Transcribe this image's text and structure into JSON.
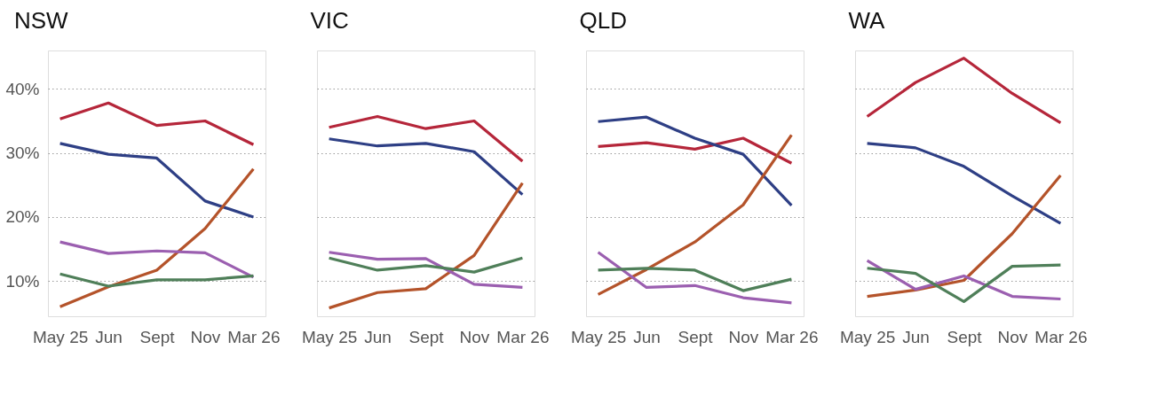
{
  "chart_data": [
    {
      "type": "line",
      "title": "NSW",
      "categories": [
        "May 25",
        "Jun",
        "Sept",
        "Nov",
        "Mar 26"
      ],
      "ylim": [
        4.5,
        46
      ],
      "yticks": [
        {
          "value": 10,
          "label": "10%"
        },
        {
          "value": 20,
          "label": "20%"
        },
        {
          "value": 30,
          "label": "30%"
        },
        {
          "value": 40,
          "label": "40%"
        }
      ],
      "grid": "y",
      "legend": false,
      "line_style": "solid",
      "series": [
        {
          "color": "#b5263a",
          "values": [
            35.3,
            37.8,
            34.3,
            35.0,
            31.3
          ]
        },
        {
          "color": "#2e3f85",
          "values": [
            31.5,
            29.8,
            29.2,
            22.5,
            20.0
          ]
        },
        {
          "color": "#b4532a",
          "values": [
            6.0,
            9.1,
            11.7,
            18.2,
            27.5
          ]
        },
        {
          "color": "#9b5fb0",
          "values": [
            16.1,
            14.3,
            14.7,
            14.4,
            10.6
          ]
        },
        {
          "color": "#4f7f59",
          "values": [
            11.1,
            9.2,
            10.2,
            10.2,
            10.8
          ]
        }
      ]
    },
    {
      "type": "line",
      "title": "VIC",
      "categories": [
        "May 25",
        "Jun",
        "Sept",
        "Nov",
        "Mar 26"
      ],
      "ylim": [
        4.5,
        46
      ],
      "yticks": [
        {
          "value": 10,
          "label": null
        },
        {
          "value": 20,
          "label": null
        },
        {
          "value": 30,
          "label": null
        },
        {
          "value": 40,
          "label": null
        }
      ],
      "grid": "y",
      "legend": false,
      "line_style": "solid",
      "tick_labels": "x",
      "series": [
        {
          "color": "#b5263a",
          "values": [
            34.0,
            35.7,
            33.8,
            35.0,
            28.7
          ]
        },
        {
          "color": "#2e3f85",
          "values": [
            32.2,
            31.1,
            31.5,
            30.2,
            23.5
          ]
        },
        {
          "color": "#b4532a",
          "values": [
            5.8,
            8.2,
            8.8,
            14.0,
            25.3
          ]
        },
        {
          "color": "#9b5fb0",
          "values": [
            14.5,
            13.4,
            13.5,
            9.5,
            9.0
          ]
        },
        {
          "color": "#4f7f59",
          "values": [
            13.6,
            11.7,
            12.4,
            11.4,
            13.6
          ]
        }
      ]
    },
    {
      "type": "line",
      "title": "QLD",
      "categories": [
        "May 25",
        "Jun",
        "Sept",
        "Nov",
        "Mar 26"
      ],
      "ylim": [
        4.5,
        46
      ],
      "yticks": [
        {
          "value": 10,
          "label": null
        },
        {
          "value": 20,
          "label": null
        },
        {
          "value": 30,
          "label": null
        },
        {
          "value": 40,
          "label": null
        }
      ],
      "grid": "y",
      "legend": false,
      "line_style": "solid",
      "tick_labels": "x",
      "series": [
        {
          "color": "#b5263a",
          "values": [
            31.0,
            31.6,
            30.6,
            32.3,
            28.4
          ]
        },
        {
          "color": "#2e3f85",
          "values": [
            34.9,
            35.6,
            32.3,
            29.8,
            21.8
          ]
        },
        {
          "color": "#b4532a",
          "values": [
            7.9,
            11.8,
            16.1,
            21.9,
            32.8
          ]
        },
        {
          "color": "#9b5fb0",
          "values": [
            14.5,
            9.0,
            9.3,
            7.4,
            6.6
          ]
        },
        {
          "color": "#4f7f59",
          "values": [
            11.7,
            12.0,
            11.7,
            8.5,
            10.3
          ]
        }
      ]
    },
    {
      "type": "line",
      "title": "WA",
      "categories": [
        "May 25",
        "Jun",
        "Sept",
        "Nov",
        "Mar 26"
      ],
      "ylim": [
        4.5,
        46
      ],
      "yticks": [
        {
          "value": 10,
          "label": null
        },
        {
          "value": 20,
          "label": null
        },
        {
          "value": 30,
          "label": null
        },
        {
          "value": 40,
          "label": null
        }
      ],
      "grid": "y",
      "legend": false,
      "line_style": "solid",
      "tick_labels": "x",
      "series": [
        {
          "color": "#b5263a",
          "values": [
            35.7,
            41.0,
            44.8,
            39.3,
            34.7
          ]
        },
        {
          "color": "#2e3f85",
          "values": [
            31.5,
            30.8,
            27.9,
            23.3,
            19.0
          ]
        },
        {
          "color": "#b4532a",
          "values": [
            7.6,
            8.6,
            10.1,
            17.4,
            26.5
          ]
        },
        {
          "color": "#9b5fb0",
          "values": [
            13.2,
            8.7,
            10.8,
            7.6,
            7.2
          ]
        },
        {
          "color": "#4f7f59",
          "values": [
            12.0,
            11.2,
            6.8,
            12.3,
            12.5
          ]
        }
      ]
    }
  ]
}
